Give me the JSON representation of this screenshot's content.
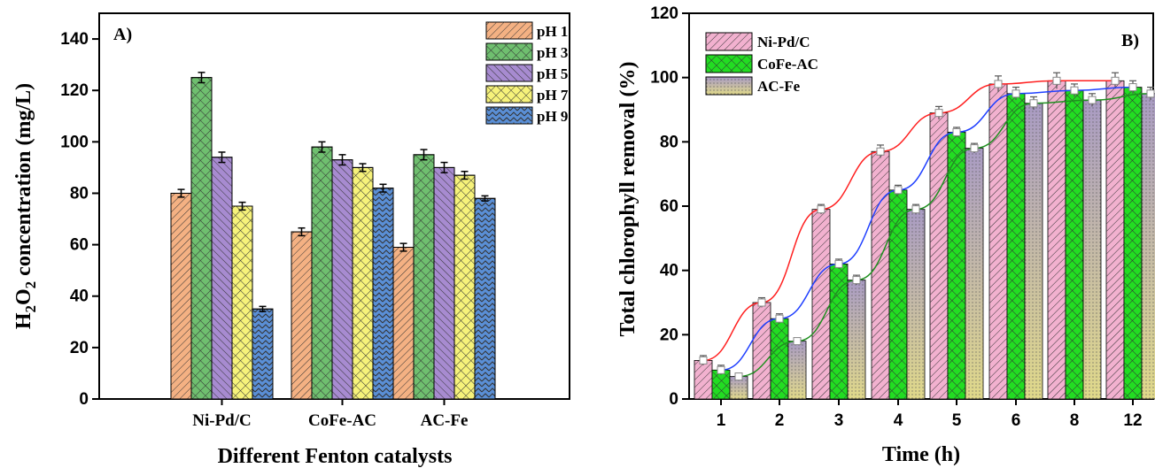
{
  "chart_data": [
    {
      "type": "bar",
      "panel_label": "A)",
      "categories": [
        "Ni-Pd/C",
        "CoFe-AC",
        "AC-Fe"
      ],
      "series": [
        {
          "name": "pH 1",
          "values": [
            80,
            65,
            59
          ],
          "errors": [
            1.5,
            1.5,
            1.5
          ],
          "color": "#f4b183",
          "pattern": "diag-left"
        },
        {
          "name": "pH 3",
          "values": [
            125,
            98,
            95
          ],
          "errors": [
            2,
            2,
            2
          ],
          "color": "#6fbf6f",
          "pattern": "crosshatch"
        },
        {
          "name": "pH 5",
          "values": [
            94,
            93,
            90
          ],
          "errors": [
            2,
            2,
            2
          ],
          "color": "#a78bd0",
          "pattern": "diag-right"
        },
        {
          "name": "pH 7",
          "values": [
            75,
            90,
            87
          ],
          "errors": [
            1.5,
            1.5,
            1.5
          ],
          "color": "#f6f27a",
          "pattern": "crosshatch"
        },
        {
          "name": "pH 9",
          "values": [
            35,
            82,
            78
          ],
          "errors": [
            1,
            1.5,
            1
          ],
          "color": "#5a8fd6",
          "pattern": "zigzag"
        }
      ],
      "ylabel_pre": "H",
      "ylabel_sub1": "2",
      "ylabel_mid": "O",
      "ylabel_sub2": "2",
      "ylabel_post": " concentration (mg/L)",
      "xlabel": "Different  Fenton catalysts",
      "ylim": [
        0,
        150
      ],
      "yticks": [
        0,
        20,
        40,
        60,
        80,
        100,
        120,
        140
      ],
      "legend_position": "top-right",
      "grid": false
    },
    {
      "type": "bar",
      "panel_label": "B)",
      "categories": [
        "1",
        "2",
        "3",
        "4",
        "5",
        "6",
        "8",
        "12"
      ],
      "series": [
        {
          "name": "Ni-Pd/C",
          "values": [
            12,
            30,
            59,
            77,
            89,
            98,
            99,
            99
          ],
          "errors": [
            1.5,
            1.5,
            1.5,
            2,
            2,
            2.5,
            2.5,
            2.5
          ],
          "color": "#f2b1cf",
          "pattern": "diag-left",
          "line_color": "#ff2020"
        },
        {
          "name": "CoFe-AC",
          "values": [
            9,
            25,
            42,
            65,
            83,
            95,
            96,
            97
          ],
          "errors": [
            1.5,
            1.5,
            1.5,
            1.5,
            1.5,
            2,
            2,
            2
          ],
          "color": "#22dd22",
          "pattern": "crosshatch",
          "line_color": "#2040ff"
        },
        {
          "name": "AC-Fe",
          "values": [
            7,
            18,
            37,
            59,
            78,
            92,
            93,
            95
          ],
          "errors": [
            1,
            1,
            1.5,
            1.5,
            1.5,
            2,
            2,
            2
          ],
          "color": "#b7a9c9",
          "pattern": "gradient",
          "line_color": "#209020"
        }
      ],
      "ylabel": "Total chlorophyll removal (%)",
      "xlabel": "Time (h)",
      "ylim": [
        0,
        120
      ],
      "yticks": [
        0,
        20,
        40,
        60,
        80,
        100,
        120
      ],
      "legend_position": "top-left",
      "grid": false
    }
  ]
}
